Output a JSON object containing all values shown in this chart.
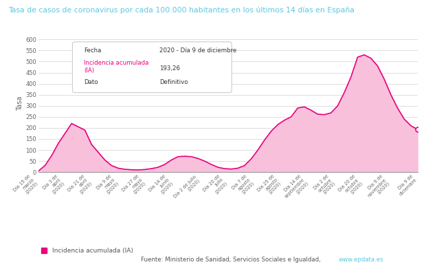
{
  "title": "Tasa de casos de coronavirus por cada 100.000 habitantes en los últimos 14 días en España",
  "ylabel": "Tasa",
  "line_color": "#e8007d",
  "fill_color": "#f9c0dc",
  "background_color": "#ffffff",
  "grid_color": "#d0d0d0",
  "ylim": [
    0,
    620
  ],
  "yticks": [
    0,
    50,
    100,
    150,
    200,
    250,
    300,
    350,
    400,
    450,
    500,
    550,
    600
  ],
  "title_color": "#5bc8e0",
  "ylabel_color": "#666666",
  "tick_labels": [
    "Día 15 de\nmarzo\n(2020)",
    "Día 3 de\nabril\n(2020)",
    "Día 21 de\nabril\n(2020)",
    "Día 9 de\nmayo\n(2020)",
    "Día 27 de\nmayo\n(2020)",
    "Día 14 de\njunio\n(2020)",
    "Día 2 de julio\n(2020)",
    "Día 20 de\njulio\n(2020)",
    "Día 7 de\nagosto\n(2020)",
    "Día 25 de\nagosto\n(2020)",
    "Día 14 de\nseptiembre\n(2020)",
    "Día 2 de\noctubre\n(2020)",
    "Día 20 de\noctubre\n(2020)",
    "Día 9 de\nnoviembre\n(2020)",
    "Día 9 de\ndiciembre"
  ],
  "values": [
    5,
    30,
    75,
    130,
    175,
    220,
    205,
    190,
    125,
    90,
    55,
    30,
    18,
    13,
    11,
    10,
    12,
    16,
    22,
    35,
    55,
    70,
    72,
    70,
    62,
    50,
    35,
    22,
    16,
    14,
    18,
    30,
    60,
    100,
    145,
    185,
    215,
    235,
    250,
    290,
    295,
    280,
    262,
    260,
    268,
    300,
    360,
    430,
    520,
    530,
    515,
    480,
    420,
    350,
    290,
    240,
    210,
    193.26
  ],
  "last_point_value": 193.26,
  "legend_label": "Incidencia acumulada (IA)",
  "source_text": "Fuente: Ministerio de Sanidad, Servicios Sociales e Igualdad, ",
  "source_link": "www.epdata.es",
  "source_link_color": "#5bc8e0",
  "source_text_color": "#555555",
  "tooltip_fecha_label": "Fecha",
  "tooltip_fecha_value": "2020 - Día 9 de diciembre",
  "tooltip_ia_label": "Incidencia acumulada\n(IA)",
  "tooltip_ia_value": "193,26",
  "tooltip_dato_label": "Dato",
  "tooltip_dato_value": "Definitivo"
}
